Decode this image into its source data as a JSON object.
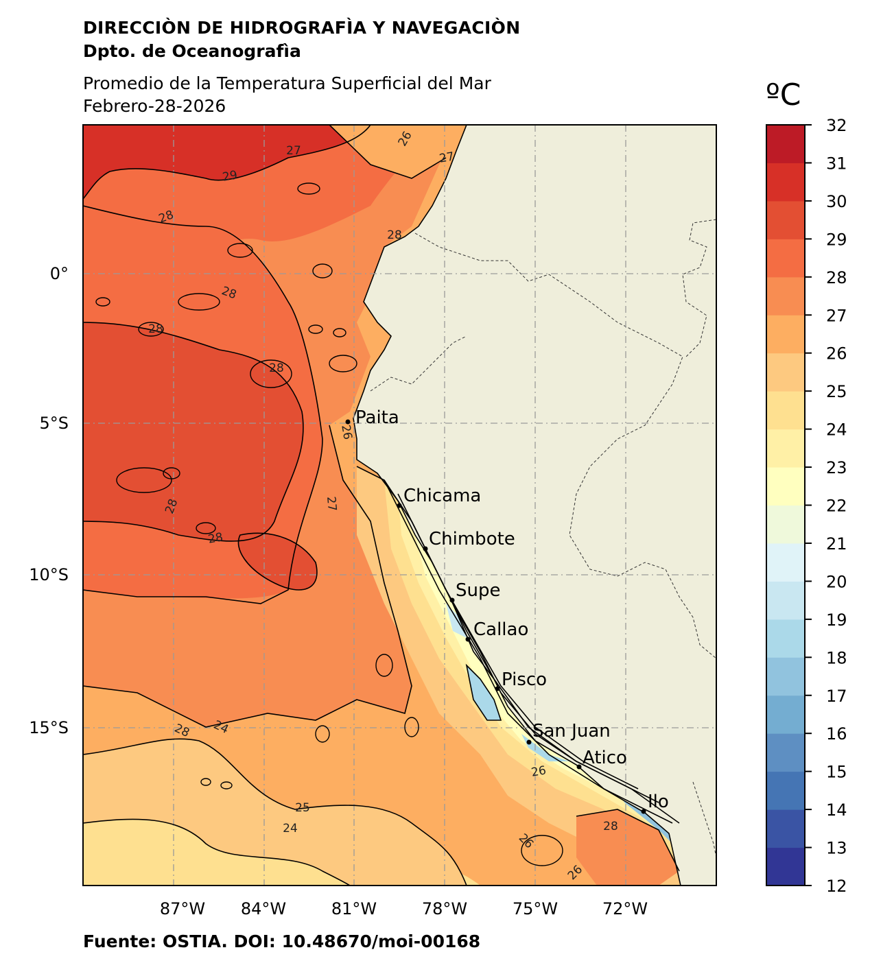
{
  "header": {
    "org": "DIRECCIÒN DE HIDROGRAFÌA Y NAVEGACIÒN",
    "dept": "Dpto. de Oceanografìa"
  },
  "title": {
    "line1": "Promedio de la Temperatura Superficial del Mar",
    "line2": "Febrero-28-2026"
  },
  "footer": "Fuente: OSTIA. DOI: 10.48670/moi-00168",
  "colorbar": {
    "unit": "ºC",
    "min": 12,
    "max": 32,
    "ticks": [
      "12",
      "13",
      "14",
      "15",
      "16",
      "17",
      "18",
      "19",
      "20",
      "21",
      "22",
      "23",
      "24",
      "25",
      "26",
      "27",
      "28",
      "29",
      "30",
      "31",
      "32"
    ],
    "colors": [
      "#313695",
      "#3a54a4",
      "#4575b4",
      "#5e8fc2",
      "#74add1",
      "#91c3de",
      "#abd9e9",
      "#c9e7f1",
      "#e0f3f8",
      "#eff9db",
      "#ffffbf",
      "#fff0a6",
      "#fee090",
      "#fdc980",
      "#fdae61",
      "#f88d52",
      "#f46d43",
      "#e34f33",
      "#d73027",
      "#bd1b26",
      "#a50026"
    ]
  },
  "map": {
    "longitude_labels": [
      "87°W",
      "84°W",
      "81°W",
      "78°W",
      "75°W",
      "72°W"
    ],
    "latitude_labels": [
      "0°",
      "5°S",
      "10°S",
      "15°S"
    ],
    "land_color": "#efeedb",
    "cities": [
      {
        "name": "Paita"
      },
      {
        "name": "Chicama"
      },
      {
        "name": "Chimbote"
      },
      {
        "name": "Supe"
      },
      {
        "name": "Callao"
      },
      {
        "name": "Pisco"
      },
      {
        "name": "San Juan"
      },
      {
        "name": "Atico"
      },
      {
        "name": "Ilo"
      }
    ],
    "contour_labels": [
      "27",
      "29",
      "28",
      "28",
      "28",
      "28",
      "28",
      "28",
      "28",
      "28",
      "26",
      "27",
      "27",
      "26",
      "25",
      "24",
      "24",
      "26",
      "26",
      "26",
      "28"
    ]
  }
}
